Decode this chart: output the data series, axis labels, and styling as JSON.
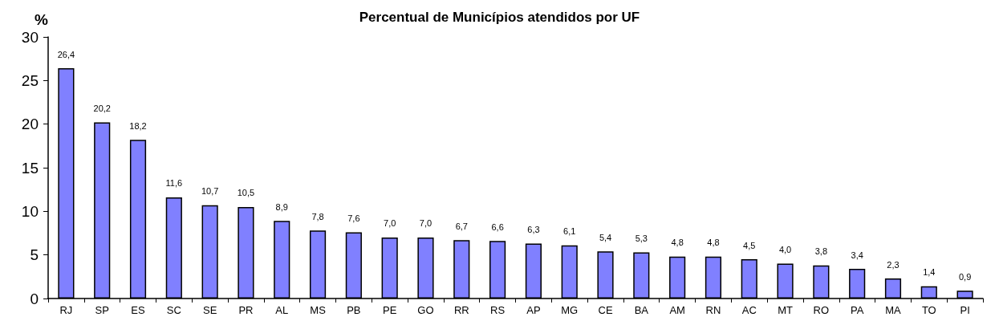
{
  "chart_data": {
    "type": "bar",
    "title": "Percentual de Municípios atendidos por UF",
    "ylabel": "%",
    "categories": [
      "RJ",
      "SP",
      "ES",
      "SC",
      "SE",
      "PR",
      "AL",
      "MS",
      "PB",
      "PE",
      "GO",
      "RR",
      "RS",
      "AP",
      "MG",
      "CE",
      "BA",
      "AM",
      "RN",
      "AC",
      "MT",
      "RO",
      "PA",
      "MA",
      "TO",
      "PI"
    ],
    "values": [
      26.4,
      20.2,
      18.2,
      11.6,
      10.7,
      10.5,
      8.9,
      7.8,
      7.6,
      7.0,
      7.0,
      6.7,
      6.6,
      6.3,
      6.1,
      5.4,
      5.3,
      4.8,
      4.8,
      4.5,
      4.0,
      3.8,
      3.4,
      2.3,
      1.4,
      0.9
    ],
    "value_labels": [
      "26,4",
      "20,2",
      "18,2",
      "11,6",
      "10,7",
      "10,5",
      "8,9",
      "7,8",
      "7,6",
      "7,0",
      "7,0",
      "6,7",
      "6,6",
      "6,3",
      "6,1",
      "5,4",
      "5,3",
      "4,8",
      "4,8",
      "4,5",
      "4,0",
      "3,8",
      "3,4",
      "2,3",
      "1,4",
      "0,9"
    ],
    "color": "#8080ff",
    "ylim": [
      0,
      30
    ],
    "yticks": [
      0,
      5,
      10,
      15,
      20,
      25,
      30
    ],
    "grid": false
  }
}
